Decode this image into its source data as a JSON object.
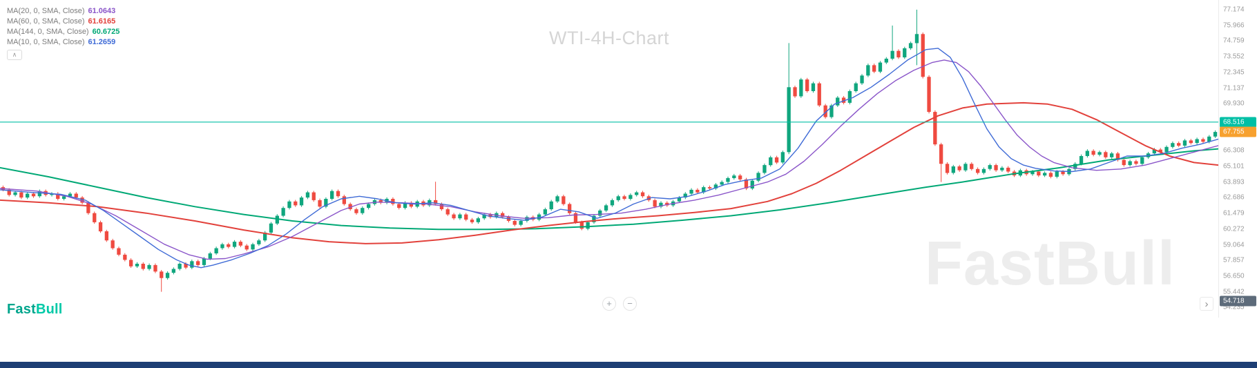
{
  "app": {
    "watermark_title": "WTI-4H-Chart",
    "watermark_brand": "FastBull",
    "logo": {
      "part1": "Fast",
      "part2": "Bull",
      "part1_color": "#00a58c",
      "part2_color": "#00c9a7"
    }
  },
  "legend": {
    "collapse_icon": "∧",
    "rows": [
      {
        "label": "MA(20, 0, SMA, Close)",
        "value": "61.0643",
        "color": "#8a55c9"
      },
      {
        "label": "MA(60, 0, SMA, Close)",
        "value": "61.6165",
        "color": "#e2413b"
      },
      {
        "label": "MA(144, 0, SMA, Close)",
        "value": "60.6725",
        "color": "#00a875"
      },
      {
        "label": "MA(10, 0, SMA, Close)",
        "value": "61.2659",
        "color": "#3f6bd6"
      }
    ]
  },
  "controls": {
    "zoom_in": "+",
    "zoom_out": "−",
    "scroll_right": "›"
  },
  "price_axis": {
    "ticks": [
      77.174,
      75.966,
      74.759,
      73.552,
      72.345,
      71.137,
      69.93,
      66.308,
      65.101,
      63.893,
      62.686,
      61.479,
      60.272,
      59.064,
      57.857,
      56.65,
      55.442,
      54.235
    ],
    "badges": [
      {
        "value": "68.516",
        "price": 68.516,
        "bg": "#00bfa5",
        "fg": "#ffffff",
        "name": "alert-line-badge",
        "interactable": "true"
      },
      {
        "value": "67.755",
        "price": 67.755,
        "bg": "#f7a12f",
        "fg": "#ffffff",
        "name": "last-price-badge",
        "interactable": "false"
      },
      {
        "value": "54.718",
        "price": 54.718,
        "bg": "#5d6b7a",
        "fg": "#ffffff",
        "name": "indicator-badge",
        "interactable": "false"
      }
    ]
  },
  "chart_data": {
    "type": "candlestick",
    "title": "WTI-4H-Chart",
    "symbol": "WTI",
    "timeframe": "4H",
    "ylim": [
      54.0,
      77.92
    ],
    "last_price": 67.755,
    "up_color": "#10a67e",
    "down_color": "#ef4a40",
    "first_open": 63.5,
    "default_wick": 0.12,
    "closes": [
      63.3,
      62.9,
      63.1,
      62.7,
      63.0,
      62.8,
      63.2,
      62.9,
      63.0,
      62.6,
      62.8,
      63.0,
      62.7,
      62.3,
      61.5,
      60.8,
      60.1,
      59.4,
      58.8,
      58.3,
      57.9,
      57.4,
      57.6,
      57.2,
      57.5,
      57.0,
      56.5,
      56.9,
      57.2,
      57.6,
      57.3,
      57.8,
      57.5,
      58.0,
      58.4,
      58.8,
      59.1,
      58.9,
      59.3,
      59.0,
      58.7,
      59.1,
      59.4,
      60.0,
      60.7,
      61.3,
      61.9,
      62.4,
      62.1,
      62.7,
      63.1,
      62.5,
      62.0,
      62.6,
      63.2,
      62.8,
      62.2,
      61.8,
      61.5,
      61.9,
      62.2,
      62.5,
      62.3,
      62.6,
      62.2,
      61.9,
      62.3,
      62.0,
      62.4,
      62.1,
      62.5,
      62.2,
      61.8,
      61.4,
      61.1,
      61.4,
      61.0,
      60.8,
      61.1,
      61.4,
      61.2,
      61.5,
      61.2,
      60.9,
      60.6,
      60.9,
      61.2,
      61.0,
      61.4,
      61.8,
      62.4,
      62.8,
      62.2,
      61.5,
      60.8,
      60.3,
      60.8,
      61.3,
      61.7,
      62.1,
      62.5,
      62.8,
      62.6,
      62.9,
      63.1,
      62.8,
      62.5,
      62.0,
      62.3,
      62.1,
      62.4,
      62.7,
      63.0,
      63.3,
      63.1,
      63.5,
      63.4,
      63.7,
      63.9,
      64.2,
      64.4,
      64.1,
      63.4,
      64.0,
      64.6,
      65.2,
      65.8,
      65.4,
      66.2,
      71.2,
      70.5,
      71.8,
      70.9,
      71.5,
      69.8,
      68.9,
      69.8,
      70.4,
      70.0,
      70.9,
      71.5,
      72.1,
      72.9,
      72.4,
      73.1,
      73.4,
      74.0,
      73.5,
      74.2,
      74.6,
      75.3,
      72.0,
      69.3,
      66.8,
      65.3,
      64.6,
      65.1,
      64.8,
      65.3,
      64.9,
      64.6,
      64.9,
      65.2,
      64.8,
      65.0,
      64.7,
      64.4,
      64.8,
      64.5,
      64.7,
      64.4,
      64.6,
      64.3,
      64.7,
      64.5,
      64.9,
      65.3,
      65.9,
      66.3,
      66.0,
      66.2,
      65.8,
      66.1,
      65.6,
      65.2,
      65.5,
      65.3,
      65.8,
      66.1,
      66.4,
      66.2,
      66.6,
      66.9,
      66.7,
      67.1,
      66.9,
      67.2,
      67.0,
      67.4,
      67.755
    ],
    "overrides": {
      "26": {
        "low": 55.44
      },
      "71": {
        "high": 63.92
      },
      "129": {
        "high": 74.6,
        "low": 66.05
      },
      "146": {
        "high": 75.95
      },
      "150": {
        "high": 77.174,
        "low": 72.9
      },
      "154": {
        "low": 63.9
      }
    },
    "horizontal_line": {
      "price": 68.516,
      "color": "#00bfa5"
    },
    "moving_averages": [
      {
        "name": "MA144",
        "color": "#00a875",
        "width": 2,
        "points": [
          [
            0,
            65.0
          ],
          [
            8,
            64.3
          ],
          [
            16,
            63.5
          ],
          [
            24,
            62.7
          ],
          [
            32,
            62.0
          ],
          [
            40,
            61.4
          ],
          [
            48,
            60.9
          ],
          [
            56,
            60.55
          ],
          [
            64,
            60.35
          ],
          [
            72,
            60.25
          ],
          [
            80,
            60.25
          ],
          [
            88,
            60.3
          ],
          [
            96,
            60.45
          ],
          [
            104,
            60.65
          ],
          [
            112,
            60.95
          ],
          [
            120,
            61.3
          ],
          [
            128,
            61.75
          ],
          [
            136,
            62.3
          ],
          [
            144,
            62.9
          ],
          [
            152,
            63.5
          ],
          [
            158,
            63.9
          ],
          [
            166,
            64.5
          ],
          [
            174,
            65.0
          ],
          [
            182,
            65.6
          ],
          [
            190,
            66.0
          ],
          [
            196,
            66.3
          ],
          [
            200,
            66.45
          ]
        ]
      },
      {
        "name": "MA60",
        "color": "#e2413b",
        "width": 2,
        "points": [
          [
            0,
            62.5
          ],
          [
            8,
            62.3
          ],
          [
            16,
            62.0
          ],
          [
            24,
            61.5
          ],
          [
            32,
            60.9
          ],
          [
            40,
            60.2
          ],
          [
            48,
            59.6
          ],
          [
            54,
            59.3
          ],
          [
            60,
            59.15
          ],
          [
            66,
            59.2
          ],
          [
            72,
            59.45
          ],
          [
            78,
            59.8
          ],
          [
            84,
            60.2
          ],
          [
            90,
            60.55
          ],
          [
            96,
            60.85
          ],
          [
            102,
            61.1
          ],
          [
            108,
            61.3
          ],
          [
            114,
            61.55
          ],
          [
            120,
            61.85
          ],
          [
            126,
            62.4
          ],
          [
            130,
            63.0
          ],
          [
            134,
            63.8
          ],
          [
            138,
            64.8
          ],
          [
            142,
            65.9
          ],
          [
            146,
            67.0
          ],
          [
            150,
            68.1
          ],
          [
            154,
            69.0
          ],
          [
            158,
            69.6
          ],
          [
            162,
            69.9
          ],
          [
            168,
            70.0
          ],
          [
            172,
            69.9
          ],
          [
            176,
            69.5
          ],
          [
            180,
            68.7
          ],
          [
            184,
            67.7
          ],
          [
            188,
            66.7
          ],
          [
            192,
            65.9
          ],
          [
            196,
            65.4
          ],
          [
            200,
            65.2
          ]
        ]
      },
      {
        "name": "MA20",
        "color": "#8a55c9",
        "width": 1.4,
        "points": [
          [
            0,
            63.4
          ],
          [
            6,
            63.2
          ],
          [
            11,
            62.8
          ],
          [
            15,
            62.2
          ],
          [
            19,
            61.3
          ],
          [
            23,
            60.2
          ],
          [
            27,
            59.1
          ],
          [
            31,
            58.3
          ],
          [
            34,
            57.95
          ],
          [
            37,
            58.0
          ],
          [
            40,
            58.35
          ],
          [
            44,
            58.9
          ],
          [
            48,
            59.7
          ],
          [
            52,
            60.7
          ],
          [
            56,
            61.7
          ],
          [
            59,
            62.2
          ],
          [
            62,
            62.35
          ],
          [
            66,
            62.3
          ],
          [
            70,
            62.2
          ],
          [
            74,
            62.0
          ],
          [
            78,
            61.6
          ],
          [
            82,
            61.3
          ],
          [
            86,
            61.1
          ],
          [
            90,
            61.15
          ],
          [
            94,
            61.35
          ],
          [
            98,
            61.4
          ],
          [
            102,
            61.5
          ],
          [
            106,
            61.8
          ],
          [
            110,
            62.2
          ],
          [
            114,
            62.5
          ],
          [
            118,
            62.9
          ],
          [
            122,
            63.4
          ],
          [
            126,
            63.9
          ],
          [
            129,
            64.5
          ],
          [
            132,
            65.5
          ],
          [
            135,
            66.8
          ],
          [
            138,
            68.2
          ],
          [
            141,
            69.5
          ],
          [
            144,
            70.7
          ],
          [
            147,
            71.7
          ],
          [
            150,
            72.5
          ],
          [
            153,
            73.1
          ],
          [
            155,
            73.3
          ],
          [
            157,
            73.1
          ],
          [
            159,
            72.4
          ],
          [
            161,
            71.3
          ],
          [
            163,
            70.0
          ],
          [
            165,
            68.7
          ],
          [
            167,
            67.5
          ],
          [
            169,
            66.6
          ],
          [
            171,
            65.9
          ],
          [
            173,
            65.4
          ],
          [
            176,
            65.0
          ],
          [
            180,
            64.8
          ],
          [
            184,
            64.9
          ],
          [
            188,
            65.2
          ],
          [
            192,
            65.7
          ],
          [
            196,
            66.2
          ],
          [
            200,
            66.7
          ]
        ]
      },
      {
        "name": "MA10",
        "color": "#3f6bd6",
        "width": 1.4,
        "points": [
          [
            0,
            63.3
          ],
          [
            5,
            63.1
          ],
          [
            10,
            62.95
          ],
          [
            14,
            62.5
          ],
          [
            17,
            61.7
          ],
          [
            20,
            60.7
          ],
          [
            23,
            59.7
          ],
          [
            26,
            58.7
          ],
          [
            29,
            57.9
          ],
          [
            31,
            57.5
          ],
          [
            33,
            57.3
          ],
          [
            35,
            57.5
          ],
          [
            38,
            57.9
          ],
          [
            41,
            58.4
          ],
          [
            44,
            59.0
          ],
          [
            47,
            59.9
          ],
          [
            50,
            61.0
          ],
          [
            53,
            62.0
          ],
          [
            56,
            62.6
          ],
          [
            59,
            62.8
          ],
          [
            62,
            62.6
          ],
          [
            65,
            62.3
          ],
          [
            68,
            62.2
          ],
          [
            71,
            62.3
          ],
          [
            74,
            62.1
          ],
          [
            77,
            61.7
          ],
          [
            80,
            61.3
          ],
          [
            83,
            61.1
          ],
          [
            86,
            60.95
          ],
          [
            89,
            61.2
          ],
          [
            92,
            61.8
          ],
          [
            95,
            61.6
          ],
          [
            98,
            61.1
          ],
          [
            101,
            61.5
          ],
          [
            104,
            62.2
          ],
          [
            107,
            62.7
          ],
          [
            110,
            62.6
          ],
          [
            113,
            62.8
          ],
          [
            116,
            63.2
          ],
          [
            119,
            63.7
          ],
          [
            122,
            64.0
          ],
          [
            125,
            64.2
          ],
          [
            128,
            64.9
          ],
          [
            131,
            66.5
          ],
          [
            134,
            68.6
          ],
          [
            137,
            69.9
          ],
          [
            140,
            70.4
          ],
          [
            143,
            71.2
          ],
          [
            146,
            72.2
          ],
          [
            149,
            73.3
          ],
          [
            152,
            74.1
          ],
          [
            154,
            74.2
          ],
          [
            156,
            73.5
          ],
          [
            158,
            71.9
          ],
          [
            160,
            69.9
          ],
          [
            162,
            68.0
          ],
          [
            164,
            66.6
          ],
          [
            166,
            65.7
          ],
          [
            168,
            65.2
          ],
          [
            170,
            64.95
          ],
          [
            173,
            64.75
          ],
          [
            176,
            64.7
          ],
          [
            179,
            64.9
          ],
          [
            182,
            65.4
          ],
          [
            185,
            65.9
          ],
          [
            188,
            65.9
          ],
          [
            191,
            66.1
          ],
          [
            194,
            66.5
          ],
          [
            197,
            66.8
          ],
          [
            200,
            67.2
          ]
        ]
      }
    ]
  }
}
